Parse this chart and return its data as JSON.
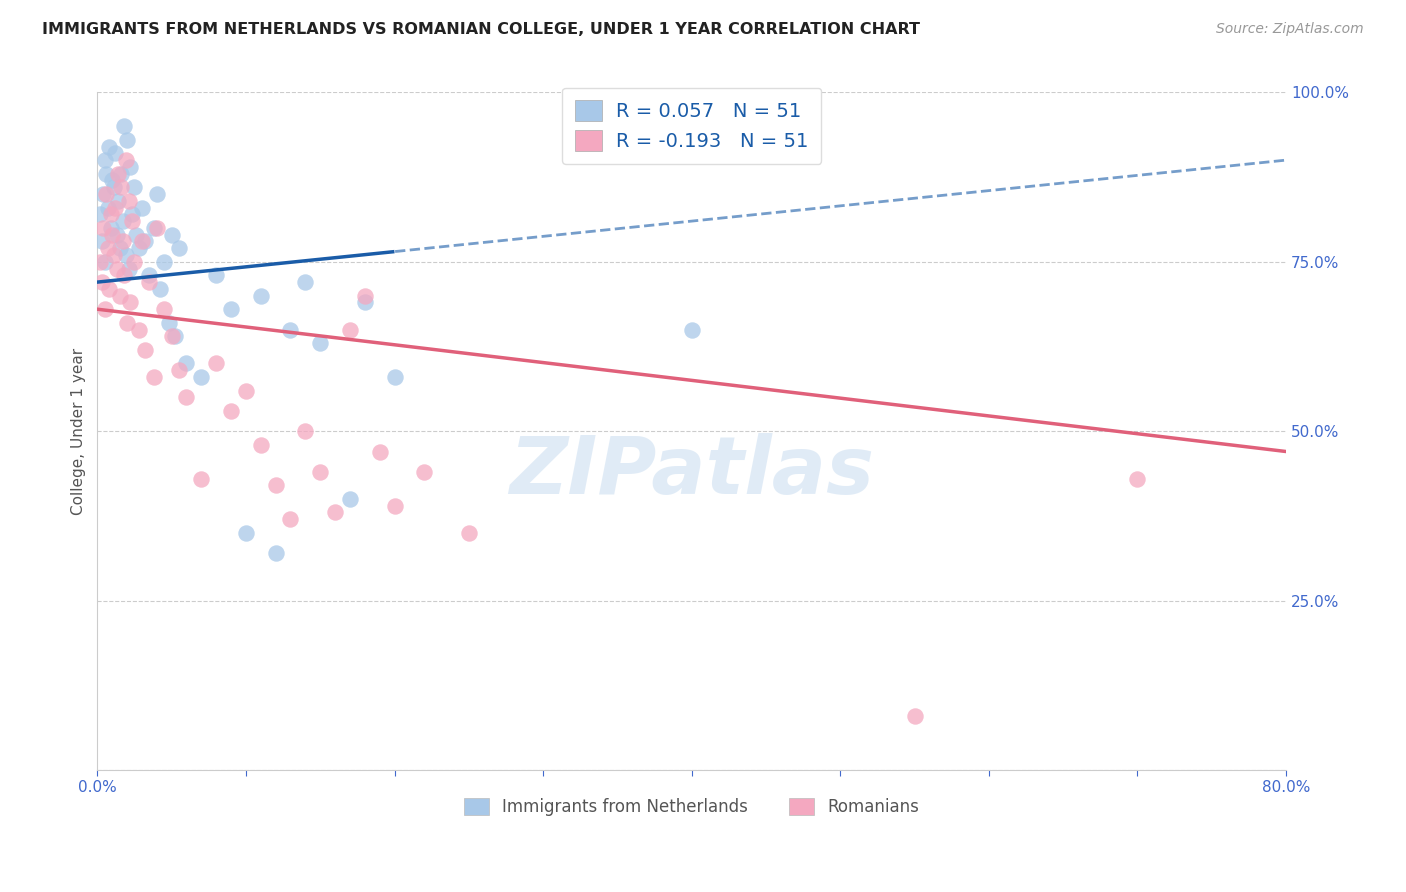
{
  "title": "IMMIGRANTS FROM NETHERLANDS VS ROMANIAN COLLEGE, UNDER 1 YEAR CORRELATION CHART",
  "source": "Source: ZipAtlas.com",
  "xlabel_bottom": [
    "Immigrants from Netherlands",
    "Romanians"
  ],
  "ylabel": "College, Under 1 year",
  "xlim": [
    0.0,
    80.0
  ],
  "ylim": [
    0.0,
    100.0
  ],
  "R_blue": 0.057,
  "N_blue": 51,
  "R_pink": -0.193,
  "N_pink": 51,
  "color_blue": "#A8C8E8",
  "color_pink": "#F4A8C0",
  "line_blue": "#1A5CA8",
  "line_pink": "#E0607A",
  "watermark": "ZIPatlas",
  "blue_line_x0": 0.0,
  "blue_line_y0": 72.0,
  "blue_line_x1": 80.0,
  "blue_line_y1": 90.0,
  "blue_solid_end": 20.0,
  "pink_line_x0": 0.0,
  "pink_line_y0": 68.0,
  "pink_line_x1": 80.0,
  "pink_line_y1": 47.0,
  "blue_scatter_x": [
    0.2,
    0.3,
    0.4,
    0.5,
    0.5,
    0.6,
    0.7,
    0.8,
    0.9,
    1.0,
    1.1,
    1.2,
    1.3,
    1.4,
    1.5,
    1.6,
    1.7,
    1.8,
    1.9,
    2.0,
    2.1,
    2.2,
    2.3,
    2.5,
    2.6,
    2.8,
    3.0,
    3.2,
    3.5,
    3.8,
    4.0,
    4.2,
    4.5,
    4.8,
    5.0,
    5.2,
    5.5,
    6.0,
    7.0,
    8.0,
    9.0,
    10.0,
    11.0,
    12.0,
    13.0,
    14.0,
    15.0,
    17.0,
    18.0,
    20.0,
    40.0
  ],
  "blue_scatter_y": [
    82,
    78,
    85,
    90,
    75,
    88,
    83,
    92,
    80,
    87,
    86,
    91,
    79,
    84,
    77,
    88,
    81,
    95,
    76,
    93,
    74,
    89,
    82,
    86,
    79,
    77,
    83,
    78,
    73,
    80,
    85,
    71,
    75,
    66,
    79,
    64,
    77,
    60,
    58,
    73,
    68,
    35,
    70,
    32,
    65,
    72,
    63,
    40,
    69,
    58,
    65
  ],
  "pink_scatter_x": [
    0.2,
    0.3,
    0.4,
    0.5,
    0.6,
    0.7,
    0.8,
    0.9,
    1.0,
    1.1,
    1.2,
    1.3,
    1.4,
    1.5,
    1.6,
    1.7,
    1.8,
    1.9,
    2.0,
    2.1,
    2.2,
    2.3,
    2.5,
    2.8,
    3.0,
    3.2,
    3.5,
    3.8,
    4.0,
    4.5,
    5.0,
    5.5,
    6.0,
    7.0,
    8.0,
    9.0,
    10.0,
    11.0,
    12.0,
    13.0,
    14.0,
    15.0,
    16.0,
    17.0,
    18.0,
    19.0,
    20.0,
    22.0,
    25.0,
    55.0,
    70.0
  ],
  "pink_scatter_y": [
    75,
    72,
    80,
    68,
    85,
    77,
    71,
    82,
    79,
    76,
    83,
    74,
    88,
    70,
    86,
    78,
    73,
    90,
    66,
    84,
    69,
    81,
    75,
    65,
    78,
    62,
    72,
    58,
    80,
    68,
    64,
    59,
    55,
    43,
    60,
    53,
    56,
    48,
    42,
    37,
    50,
    44,
    38,
    65,
    70,
    47,
    39,
    44,
    35,
    8,
    43
  ]
}
